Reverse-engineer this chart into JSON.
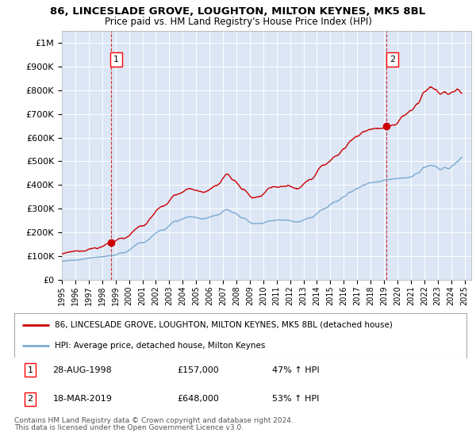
{
  "title_line1": "86, LINCESLADE GROVE, LOUGHTON, MILTON KEYNES, MK5 8BL",
  "title_line2": "Price paid vs. HM Land Registry's House Price Index (HPI)",
  "background_color": "#dce6f5",
  "outer_bg_color": "#ffffff",
  "ylim": [
    0,
    1050000
  ],
  "yticks": [
    0,
    100000,
    200000,
    300000,
    400000,
    500000,
    600000,
    700000,
    800000,
    900000,
    1000000
  ],
  "ytick_labels": [
    "£0",
    "£100K",
    "£200K",
    "£300K",
    "£400K",
    "£500K",
    "£600K",
    "£700K",
    "£800K",
    "£900K",
    "£1M"
  ],
  "xlim_start": 1995.0,
  "xlim_end": 2025.5,
  "xtick_labels": [
    "1995",
    "1996",
    "1997",
    "1998",
    "1999",
    "2000",
    "2001",
    "2002",
    "2003",
    "2004",
    "2005",
    "2006",
    "2007",
    "2008",
    "2009",
    "2010",
    "2011",
    "2012",
    "2013",
    "2014",
    "2015",
    "2016",
    "2017",
    "2018",
    "2019",
    "2020",
    "2021",
    "2022",
    "2023",
    "2024",
    "2025"
  ],
  "red_line_color": "#cc0000",
  "blue_line_color": "#7aaad0",
  "marker1_x": 1998.65,
  "marker1_y": 157000,
  "marker1_label": "1",
  "marker1_date": "28-AUG-1998",
  "marker1_price": "£157,000",
  "marker1_hpi": "47% ↑ HPI",
  "marker2_x": 2019.2,
  "marker2_y": 648000,
  "marker2_label": "2",
  "marker2_date": "18-MAR-2019",
  "marker2_price": "£648,000",
  "marker2_hpi": "53% ↑ HPI",
  "legend_line1": "86, LINCESLADE GROVE, LOUGHTON, MILTON KEYNES, MK5 8BL (detached house)",
  "legend_line2": "HPI: Average price, detached house, Milton Keynes",
  "footer1": "Contains HM Land Registry data © Crown copyright and database right 2024.",
  "footer2": "This data is licensed under the Open Government Licence v3.0."
}
